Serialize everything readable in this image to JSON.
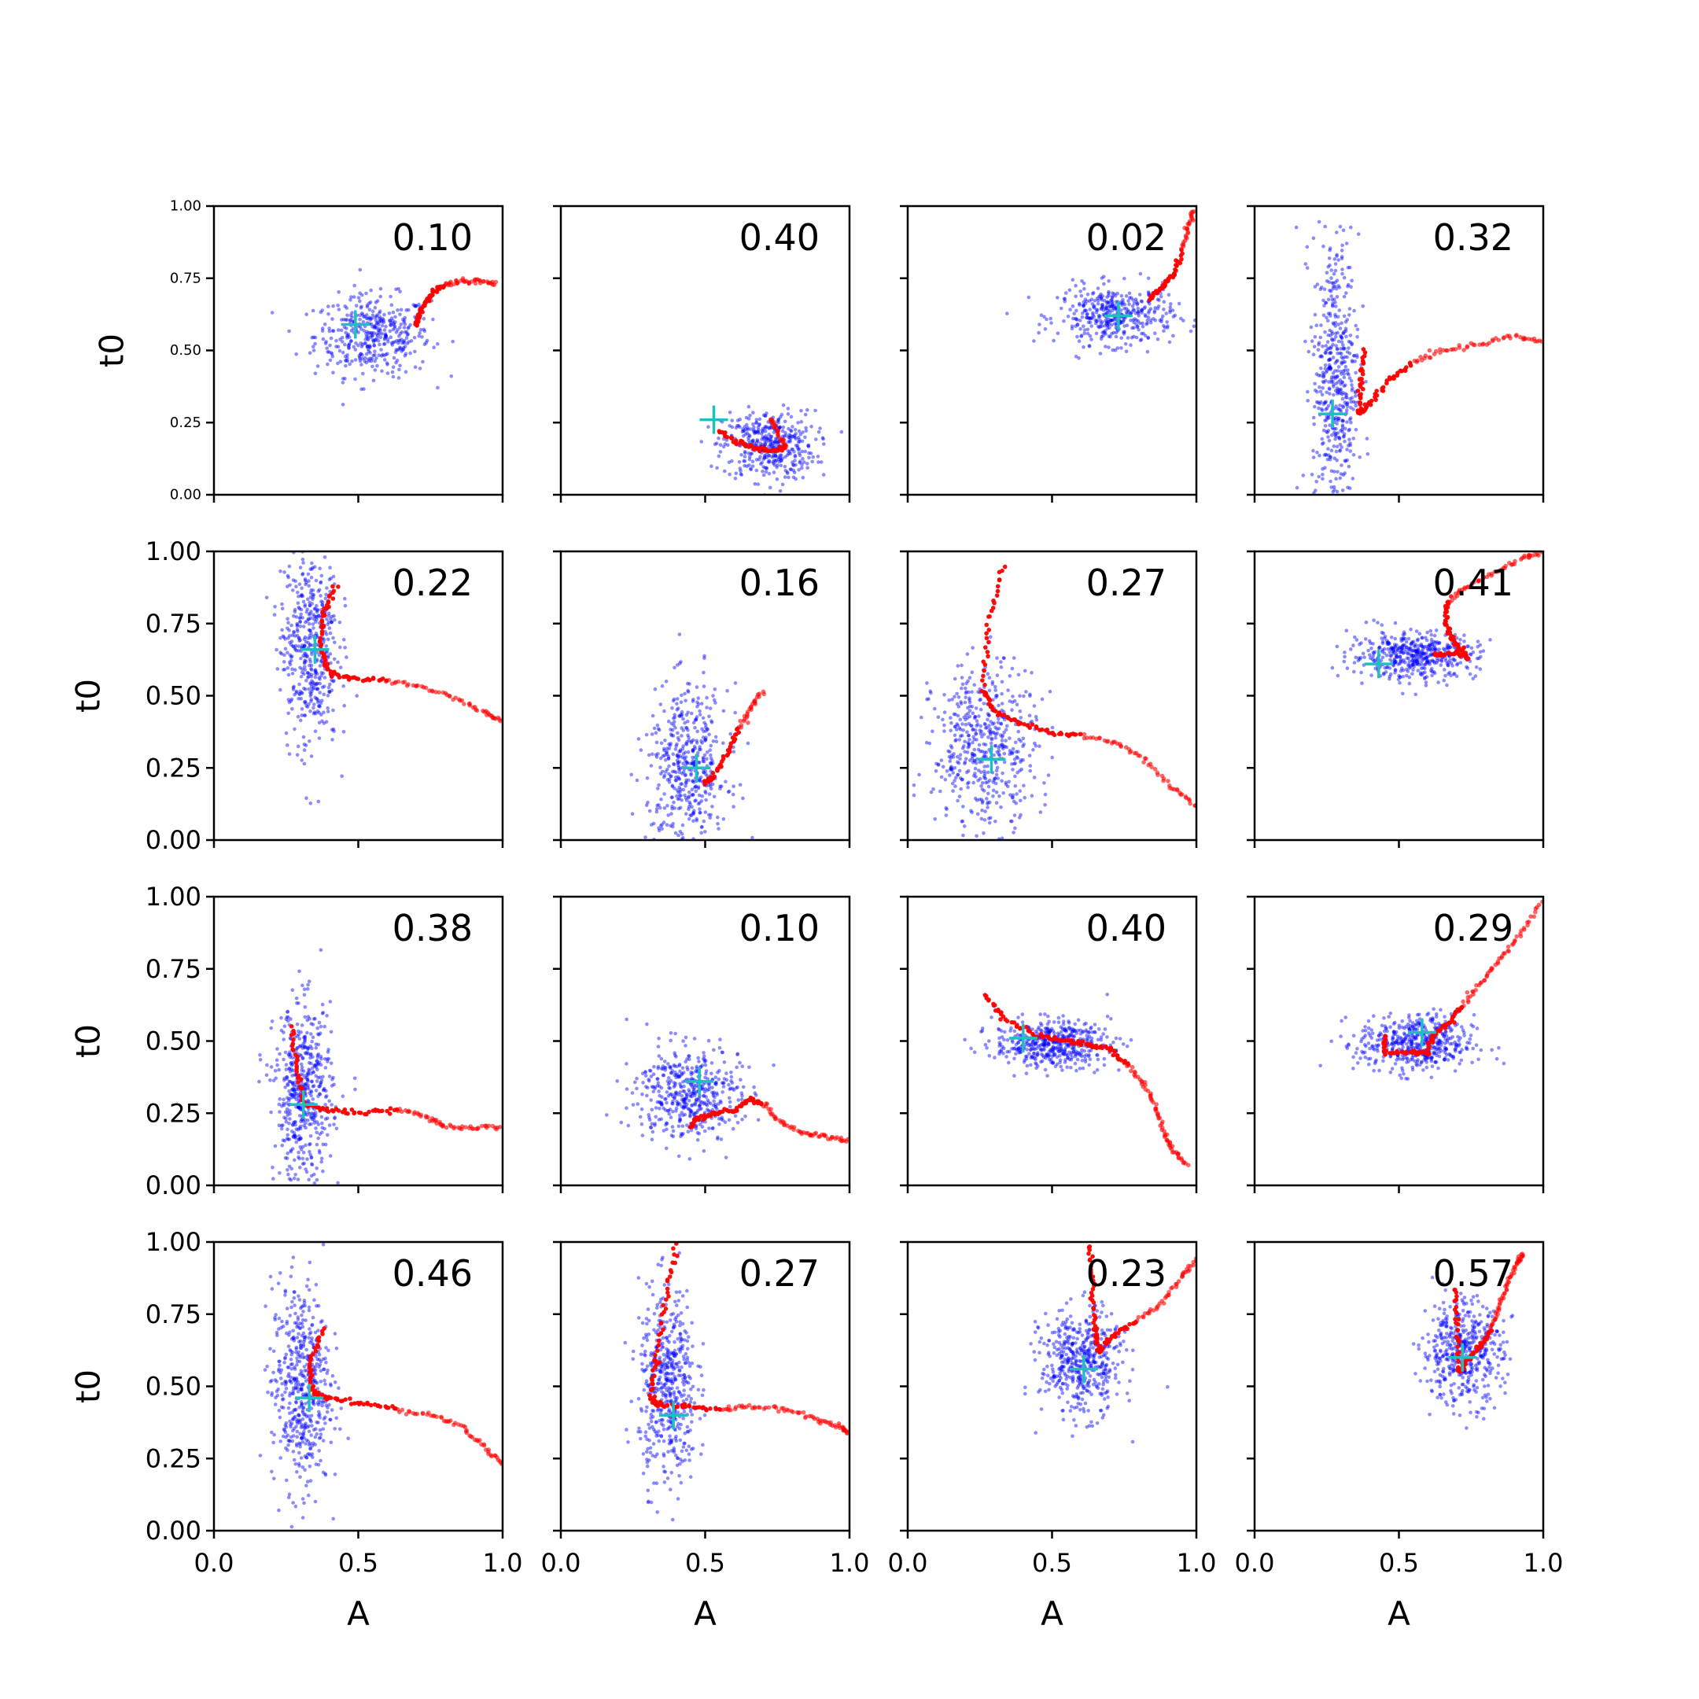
{
  "chart_data": {
    "type": "scatter",
    "layout": "4x4 grid of small-multiple scatter panels",
    "xlabel": "A",
    "ylabel": "t0",
    "xlim": [
      0.0,
      1.0
    ],
    "ylim": [
      0.0,
      1.0
    ],
    "xticks": [
      "0.0",
      "0.5",
      "1.0"
    ],
    "yticks": [
      "0.00",
      "0.25",
      "0.50",
      "0.75",
      "1.00"
    ],
    "grid": false,
    "legend": "none",
    "colors": {
      "cloud": "#0000ff",
      "trace": "#ff0000",
      "marker": "#1fbfbf"
    },
    "panels": [
      {
        "value": "0.10",
        "cloud": {
          "cx": 0.55,
          "cy": 0.55,
          "sx": 0.1,
          "sy": 0.07,
          "n": 420
        },
        "marker": {
          "x": 0.49,
          "y": 0.59
        },
        "trace": [
          [
            0.7,
            0.59
          ],
          [
            0.71,
            0.62
          ],
          [
            0.73,
            0.66
          ],
          [
            0.76,
            0.7
          ],
          [
            0.8,
            0.73
          ],
          [
            0.86,
            0.74
          ],
          [
            0.92,
            0.74
          ],
          [
            0.98,
            0.73
          ]
        ]
      },
      {
        "value": "0.40",
        "cloud": {
          "cx": 0.72,
          "cy": 0.17,
          "sx": 0.08,
          "sy": 0.06,
          "n": 420
        },
        "marker": {
          "x": 0.53,
          "y": 0.26
        },
        "trace": [
          [
            0.55,
            0.22
          ],
          [
            0.62,
            0.18
          ],
          [
            0.68,
            0.16
          ],
          [
            0.74,
            0.15
          ],
          [
            0.78,
            0.17
          ],
          [
            0.75,
            0.22
          ],
          [
            0.72,
            0.27
          ]
        ]
      },
      {
        "value": "0.02",
        "cloud": {
          "cx": 0.72,
          "cy": 0.62,
          "sx": 0.1,
          "sy": 0.05,
          "n": 420
        },
        "marker": {
          "x": 0.73,
          "y": 0.62
        },
        "trace": [
          [
            0.84,
            0.68
          ],
          [
            0.88,
            0.72
          ],
          [
            0.92,
            0.76
          ],
          [
            0.95,
            0.85
          ],
          [
            0.97,
            0.93
          ],
          [
            0.99,
            0.99
          ]
        ]
      },
      {
        "value": "0.32",
        "cloud": {
          "cx": 0.28,
          "cy": 0.4,
          "sx": 0.04,
          "sy": 0.25,
          "n": 520
        },
        "marker": {
          "x": 0.27,
          "y": 0.28
        },
        "trace": [
          [
            0.38,
            0.5
          ],
          [
            0.37,
            0.38
          ],
          [
            0.36,
            0.28
          ],
          [
            0.4,
            0.32
          ],
          [
            0.47,
            0.4
          ],
          [
            0.55,
            0.46
          ],
          [
            0.65,
            0.5
          ],
          [
            0.78,
            0.52
          ],
          [
            0.9,
            0.55
          ],
          [
            1.0,
            0.53
          ]
        ]
      },
      {
        "value": "0.22",
        "cloud": {
          "cx": 0.33,
          "cy": 0.68,
          "sx": 0.05,
          "sy": 0.18,
          "n": 480
        },
        "marker": {
          "x": 0.35,
          "y": 0.66
        },
        "trace": [
          [
            0.42,
            0.88
          ],
          [
            0.38,
            0.78
          ],
          [
            0.37,
            0.66
          ],
          [
            0.4,
            0.58
          ],
          [
            0.48,
            0.56
          ],
          [
            0.6,
            0.55
          ],
          [
            0.72,
            0.53
          ],
          [
            0.84,
            0.49
          ],
          [
            0.94,
            0.44
          ],
          [
            1.0,
            0.41
          ]
        ]
      },
      {
        "value": "0.16",
        "cloud": {
          "cx": 0.44,
          "cy": 0.25,
          "sx": 0.07,
          "sy": 0.14,
          "n": 480
        },
        "marker": {
          "x": 0.47,
          "y": 0.25
        },
        "trace": [
          [
            0.5,
            0.2
          ],
          [
            0.53,
            0.22
          ],
          [
            0.58,
            0.31
          ],
          [
            0.62,
            0.39
          ],
          [
            0.66,
            0.46
          ],
          [
            0.7,
            0.52
          ]
        ]
      },
      {
        "value": "0.27",
        "cloud": {
          "cx": 0.27,
          "cy": 0.32,
          "sx": 0.09,
          "sy": 0.14,
          "n": 520
        },
        "marker": {
          "x": 0.29,
          "y": 0.28
        },
        "trace": [
          [
            0.33,
            0.95
          ],
          [
            0.28,
            0.75
          ],
          [
            0.26,
            0.52
          ],
          [
            0.3,
            0.45
          ],
          [
            0.38,
            0.41
          ],
          [
            0.5,
            0.37
          ],
          [
            0.6,
            0.36
          ],
          [
            0.72,
            0.34
          ],
          [
            0.82,
            0.28
          ],
          [
            0.92,
            0.18
          ],
          [
            1.0,
            0.12
          ]
        ]
      },
      {
        "value": "0.41",
        "cloud": {
          "cx": 0.55,
          "cy": 0.64,
          "sx": 0.11,
          "sy": 0.04,
          "n": 480
        },
        "marker": {
          "x": 0.43,
          "y": 0.61
        },
        "trace": [
          [
            0.62,
            0.64
          ],
          [
            0.7,
            0.65
          ],
          [
            0.74,
            0.63
          ],
          [
            0.69,
            0.69
          ],
          [
            0.66,
            0.76
          ],
          [
            0.67,
            0.83
          ],
          [
            0.74,
            0.88
          ],
          [
            0.84,
            0.93
          ],
          [
            0.94,
            0.98
          ],
          [
            1.0,
            1.0
          ]
        ]
      },
      {
        "value": "0.38",
        "cloud": {
          "cx": 0.31,
          "cy": 0.32,
          "sx": 0.05,
          "sy": 0.15,
          "n": 520
        },
        "marker": {
          "x": 0.31,
          "y": 0.28
        },
        "trace": [
          [
            0.27,
            0.55
          ],
          [
            0.29,
            0.4
          ],
          [
            0.31,
            0.28
          ],
          [
            0.4,
            0.26
          ],
          [
            0.52,
            0.25
          ],
          [
            0.64,
            0.26
          ],
          [
            0.74,
            0.24
          ],
          [
            0.8,
            0.2
          ],
          [
            0.9,
            0.2
          ],
          [
            1.0,
            0.2
          ]
        ]
      },
      {
        "value": "0.10",
        "cloud": {
          "cx": 0.44,
          "cy": 0.32,
          "sx": 0.09,
          "sy": 0.08,
          "n": 480
        },
        "marker": {
          "x": 0.48,
          "y": 0.36
        },
        "trace": [
          [
            0.45,
            0.2
          ],
          [
            0.47,
            0.23
          ],
          [
            0.53,
            0.25
          ],
          [
            0.6,
            0.26
          ],
          [
            0.66,
            0.3
          ],
          [
            0.7,
            0.28
          ],
          [
            0.76,
            0.22
          ],
          [
            0.84,
            0.18
          ],
          [
            0.92,
            0.17
          ],
          [
            1.0,
            0.15
          ]
        ]
      },
      {
        "value": "0.40",
        "cloud": {
          "cx": 0.5,
          "cy": 0.49,
          "sx": 0.1,
          "sy": 0.04,
          "n": 480
        },
        "marker": {
          "x": 0.4,
          "y": 0.51
        },
        "trace": [
          [
            0.27,
            0.66
          ],
          [
            0.33,
            0.58
          ],
          [
            0.45,
            0.52
          ],
          [
            0.55,
            0.5
          ],
          [
            0.62,
            0.49
          ],
          [
            0.7,
            0.47
          ],
          [
            0.76,
            0.42
          ],
          [
            0.82,
            0.35
          ],
          [
            0.86,
            0.27
          ],
          [
            0.89,
            0.18
          ],
          [
            0.92,
            0.12
          ],
          [
            0.97,
            0.07
          ]
        ]
      },
      {
        "value": "0.29",
        "cloud": {
          "cx": 0.56,
          "cy": 0.49,
          "sx": 0.1,
          "sy": 0.05,
          "n": 480
        },
        "marker": {
          "x": 0.58,
          "y": 0.53
        },
        "trace": [
          [
            0.45,
            0.52
          ],
          [
            0.45,
            0.46
          ],
          [
            0.55,
            0.46
          ],
          [
            0.6,
            0.46
          ],
          [
            0.62,
            0.52
          ],
          [
            0.67,
            0.56
          ],
          [
            0.72,
            0.62
          ],
          [
            0.78,
            0.7
          ],
          [
            0.85,
            0.78
          ],
          [
            0.92,
            0.87
          ],
          [
            1.0,
            0.99
          ]
        ]
      },
      {
        "value": "0.46",
        "cloud": {
          "cx": 0.3,
          "cy": 0.5,
          "sx": 0.05,
          "sy": 0.18,
          "n": 520
        },
        "marker": {
          "x": 0.33,
          "y": 0.46
        },
        "trace": [
          [
            0.38,
            0.7
          ],
          [
            0.33,
            0.58
          ],
          [
            0.34,
            0.48
          ],
          [
            0.4,
            0.46
          ],
          [
            0.52,
            0.44
          ],
          [
            0.64,
            0.42
          ],
          [
            0.76,
            0.4
          ],
          [
            0.86,
            0.36
          ],
          [
            0.94,
            0.29
          ],
          [
            1.0,
            0.23
          ]
        ]
      },
      {
        "value": "0.27",
        "cloud": {
          "cx": 0.37,
          "cy": 0.5,
          "sx": 0.05,
          "sy": 0.17,
          "n": 520
        },
        "marker": {
          "x": 0.39,
          "y": 0.4
        },
        "trace": [
          [
            0.4,
            0.99
          ],
          [
            0.36,
            0.8
          ],
          [
            0.33,
            0.6
          ],
          [
            0.31,
            0.46
          ],
          [
            0.35,
            0.43
          ],
          [
            0.45,
            0.43
          ],
          [
            0.56,
            0.42
          ],
          [
            0.66,
            0.43
          ],
          [
            0.78,
            0.42
          ],
          [
            0.88,
            0.39
          ],
          [
            0.96,
            0.36
          ],
          [
            1.0,
            0.34
          ]
        ]
      },
      {
        "value": "0.23",
        "cloud": {
          "cx": 0.6,
          "cy": 0.58,
          "sx": 0.07,
          "sy": 0.09,
          "n": 480
        },
        "marker": {
          "x": 0.61,
          "y": 0.56
        },
        "trace": [
          [
            0.63,
            0.99
          ],
          [
            0.64,
            0.85
          ],
          [
            0.65,
            0.7
          ],
          [
            0.66,
            0.62
          ],
          [
            0.72,
            0.68
          ],
          [
            0.8,
            0.73
          ],
          [
            0.88,
            0.79
          ],
          [
            0.95,
            0.88
          ],
          [
            1.0,
            0.94
          ]
        ]
      },
      {
        "value": "0.57",
        "cloud": {
          "cx": 0.72,
          "cy": 0.62,
          "sx": 0.07,
          "sy": 0.09,
          "n": 480
        },
        "marker": {
          "x": 0.72,
          "y": 0.6
        },
        "trace": [
          [
            0.7,
            0.84
          ],
          [
            0.7,
            0.7
          ],
          [
            0.71,
            0.55
          ],
          [
            0.73,
            0.58
          ],
          [
            0.78,
            0.64
          ],
          [
            0.82,
            0.7
          ],
          [
            0.85,
            0.78
          ],
          [
            0.88,
            0.86
          ],
          [
            0.91,
            0.93
          ],
          [
            0.93,
            0.96
          ]
        ]
      }
    ]
  }
}
